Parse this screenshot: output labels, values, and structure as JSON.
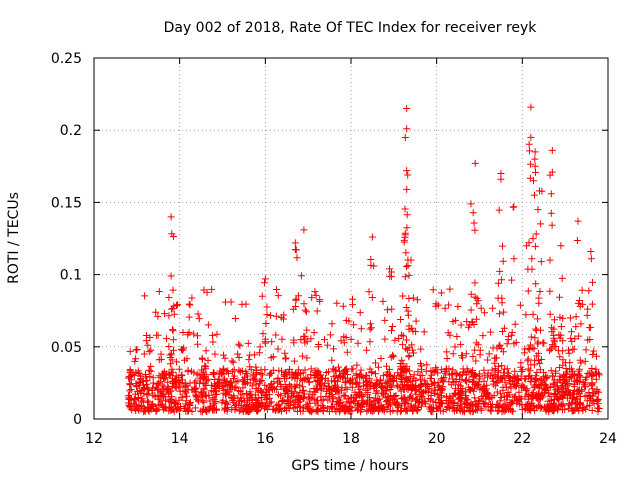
{
  "chart_data": {
    "type": "scatter",
    "title": "Day 002 of 2018, Rate Of TEC Index for receiver reyk",
    "xlabel": "GPS time / hours",
    "ylabel": "ROTI / TECUs",
    "xlim": [
      12,
      24
    ],
    "ylim": [
      0,
      0.25
    ],
    "grid": true,
    "marker": "+",
    "color": "#ff0000",
    "xticks": [
      12,
      14,
      16,
      18,
      20,
      22,
      24
    ],
    "xtick_labels": [
      "12",
      "14",
      "16",
      "18",
      "20",
      "22",
      "24"
    ],
    "yticks": [
      0,
      0.05,
      0.1,
      0.15,
      0.2,
      0.25
    ],
    "ytick_labels": [
      "0",
      "0.05",
      "0.1",
      "0.15",
      "0.2",
      "0.25"
    ],
    "peaks": [
      {
        "x": 13.8,
        "y": 0.14
      },
      {
        "x": 13.8,
        "y": 0.099
      },
      {
        "x": 16.0,
        "y": 0.097
      },
      {
        "x": 16.7,
        "y": 0.122
      },
      {
        "x": 16.9,
        "y": 0.131
      },
      {
        "x": 18.5,
        "y": 0.126
      },
      {
        "x": 18.9,
        "y": 0.104
      },
      {
        "x": 19.3,
        "y": 0.215
      },
      {
        "x": 19.3,
        "y": 0.201
      },
      {
        "x": 19.3,
        "y": 0.172
      },
      {
        "x": 19.3,
        "y": 0.159
      },
      {
        "x": 19.4,
        "y": 0.11
      },
      {
        "x": 20.8,
        "y": 0.149
      },
      {
        "x": 20.9,
        "y": 0.177
      },
      {
        "x": 21.5,
        "y": 0.17
      },
      {
        "x": 21.5,
        "y": 0.166
      },
      {
        "x": 21.8,
        "y": 0.147
      },
      {
        "x": 22.1,
        "y": 0.12
      },
      {
        "x": 22.2,
        "y": 0.216
      },
      {
        "x": 22.2,
        "y": 0.195
      },
      {
        "x": 22.3,
        "y": 0.185
      },
      {
        "x": 22.3,
        "y": 0.175
      },
      {
        "x": 22.4,
        "y": 0.158
      },
      {
        "x": 22.7,
        "y": 0.186
      },
      {
        "x": 22.7,
        "y": 0.171
      },
      {
        "x": 22.9,
        "y": 0.12
      },
      {
        "x": 23.3,
        "y": 0.137
      },
      {
        "x": 23.6,
        "y": 0.116
      }
    ],
    "background_density": {
      "x_range": [
        12.8,
        23.8
      ],
      "typical_range": [
        0.005,
        0.06
      ],
      "seed": 20180102,
      "count": 2200
    }
  }
}
